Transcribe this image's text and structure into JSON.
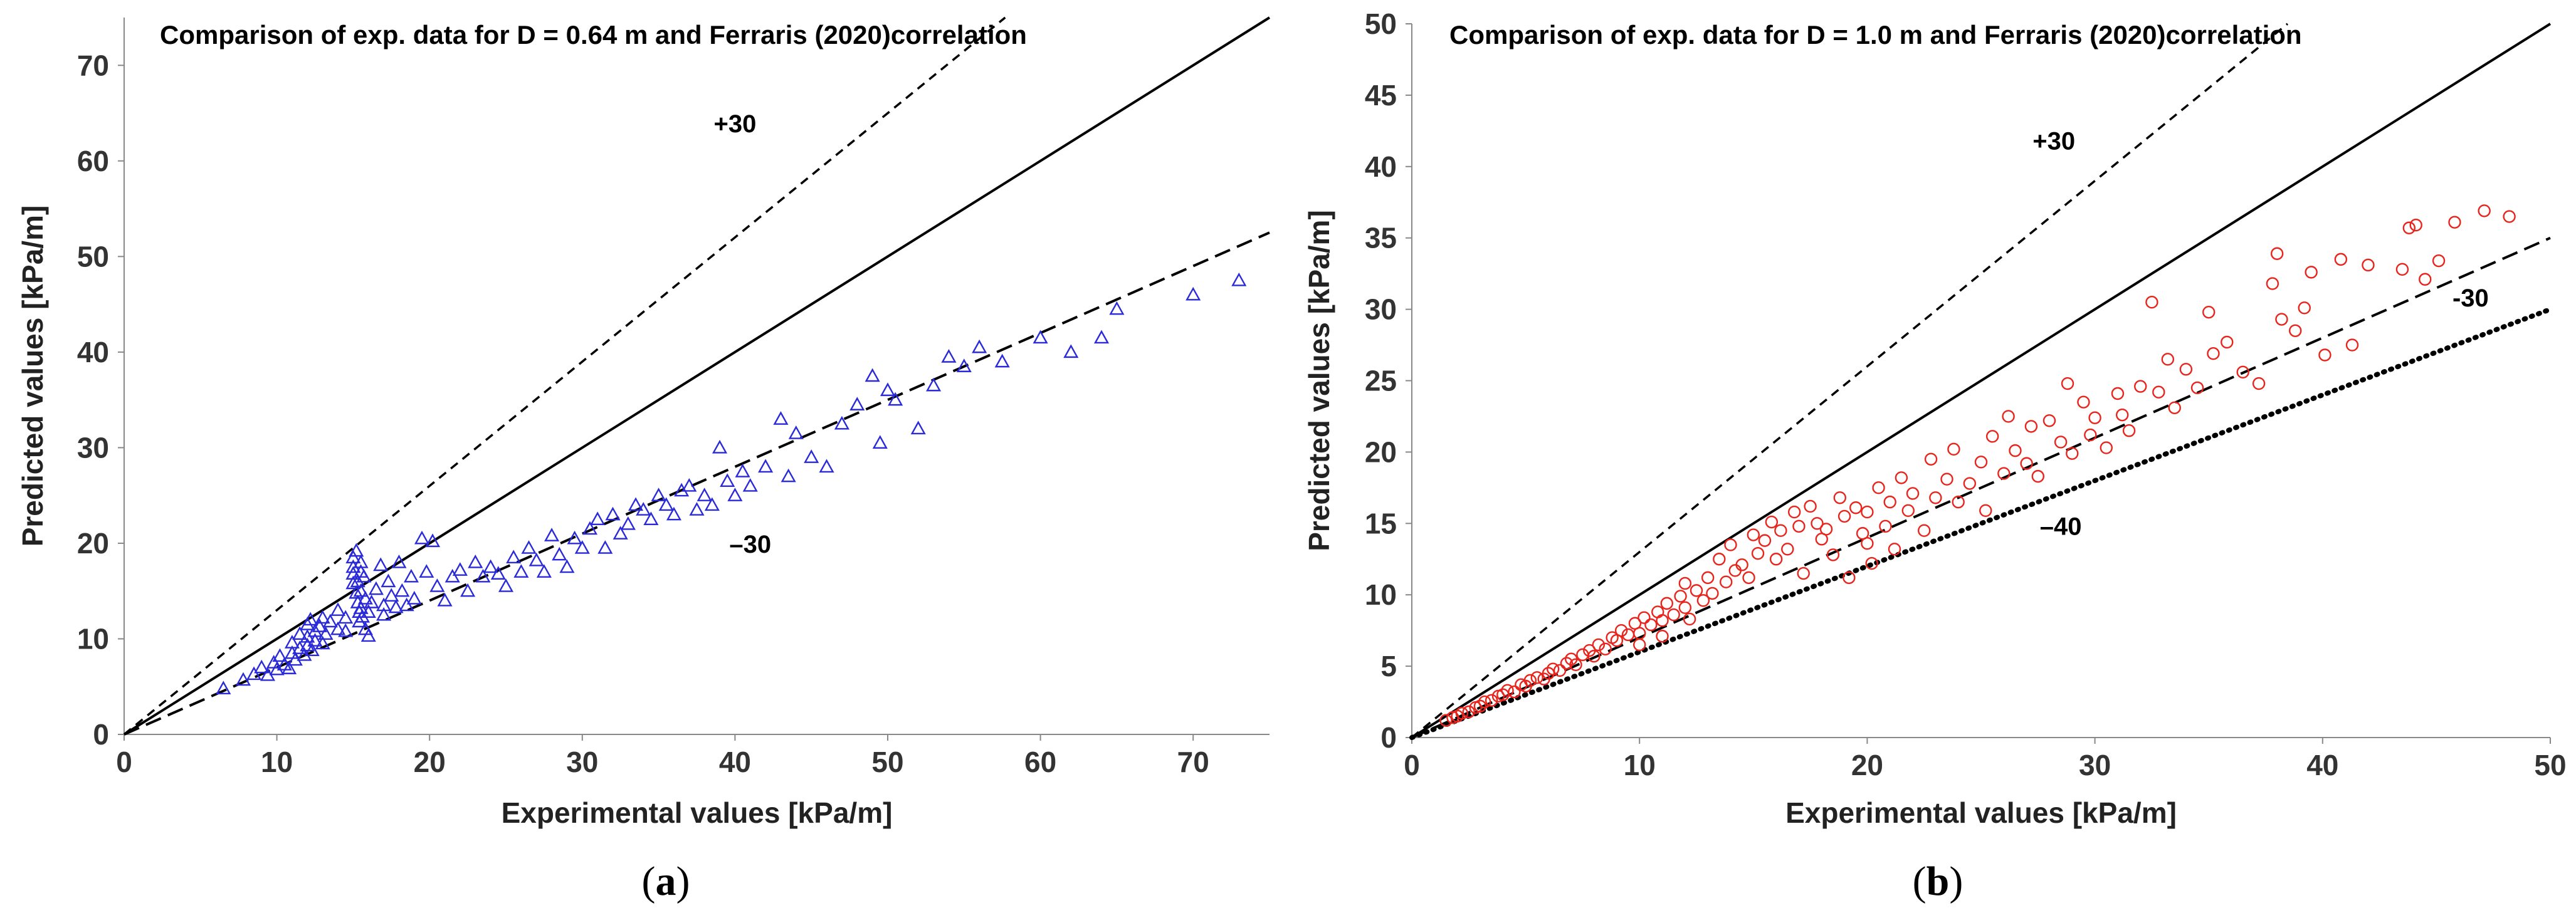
{
  "chart_data": [
    {
      "id": "a",
      "type": "scatter",
      "panel_label": "a",
      "title": "Comparison of exp. data for D = 0.64 m and Ferraris (2020)correlation",
      "xlabel": "Experimental values [kPa/m]",
      "ylabel": "Predicted values [kPa/m]",
      "xlim": [
        0,
        75
      ],
      "ylim": [
        0,
        75
      ],
      "xticks": [
        0,
        10,
        20,
        30,
        40,
        50,
        60,
        70
      ],
      "yticks": [
        0,
        10,
        20,
        30,
        40,
        50,
        60,
        70
      ],
      "marker": "triangle",
      "marker_color": "#2a2ad8",
      "grid": false,
      "reference_lines": [
        {
          "name": "equality",
          "style": "solid",
          "slope": 1.0
        },
        {
          "name": "+30",
          "style": "dashed",
          "slope": 1.3
        },
        {
          "name": "-30",
          "style": "dash",
          "slope": 0.7
        }
      ],
      "annotations": [
        {
          "text": "+30",
          "x": 40,
          "y": 63
        },
        {
          "text": "–30",
          "x": 41,
          "y": 19
        }
      ],
      "points": [
        [
          6.5,
          4.8
        ],
        [
          7.8,
          5.7
        ],
        [
          8.5,
          6.3
        ],
        [
          9,
          7
        ],
        [
          9.4,
          6.2
        ],
        [
          9.8,
          7.5
        ],
        [
          10,
          6.8
        ],
        [
          10.2,
          8.2
        ],
        [
          10.5,
          7.3
        ],
        [
          10.8,
          6.9
        ],
        [
          11,
          8.5
        ],
        [
          11,
          9.6
        ],
        [
          11.2,
          7.8
        ],
        [
          11.5,
          10.5
        ],
        [
          11.5,
          9
        ],
        [
          11.8,
          8.3
        ],
        [
          12,
          11.5
        ],
        [
          12,
          10.2
        ],
        [
          12,
          9.3
        ],
        [
          12.2,
          12
        ],
        [
          12.3,
          8.8
        ],
        [
          12.5,
          10.8
        ],
        [
          12.5,
          9.8
        ],
        [
          12.8,
          11.3
        ],
        [
          13,
          12.2
        ],
        [
          13,
          9.5
        ],
        [
          13.2,
          10.5
        ],
        [
          13.5,
          11.8
        ],
        [
          14,
          13
        ],
        [
          14,
          11
        ],
        [
          14.5,
          12.2
        ],
        [
          14.5,
          10.8
        ],
        [
          15,
          18.5
        ],
        [
          15,
          17.5
        ],
        [
          15,
          16.8
        ],
        [
          15,
          15.8
        ],
        [
          15.2,
          14.8
        ],
        [
          15.2,
          19.2
        ],
        [
          15.3,
          16
        ],
        [
          15.3,
          13.8
        ],
        [
          15.4,
          12.8
        ],
        [
          15.4,
          11.8
        ],
        [
          15.5,
          18
        ],
        [
          15.5,
          17
        ],
        [
          15.5,
          15
        ],
        [
          15.5,
          13.2
        ],
        [
          15.6,
          12.3
        ],
        [
          15.7,
          16.5
        ],
        [
          15.8,
          11
        ],
        [
          15.8,
          14.2
        ],
        [
          16,
          12.8
        ],
        [
          16,
          10.3
        ],
        [
          16.2,
          13.8
        ],
        [
          16.5,
          15.2
        ],
        [
          16.8,
          17.7
        ],
        [
          17,
          13.5
        ],
        [
          17,
          12.5
        ],
        [
          17.3,
          16
        ],
        [
          17.5,
          14.5
        ],
        [
          17.8,
          13.3
        ],
        [
          18,
          18
        ],
        [
          18.2,
          15
        ],
        [
          18.5,
          13.5
        ],
        [
          18.8,
          16.5
        ],
        [
          19,
          14.2
        ],
        [
          19.5,
          20.5
        ],
        [
          19.8,
          17
        ],
        [
          20.2,
          20.2
        ],
        [
          20.5,
          15.5
        ],
        [
          21,
          14
        ],
        [
          21.5,
          16.5
        ],
        [
          22,
          17.2
        ],
        [
          22.5,
          15
        ],
        [
          23,
          18
        ],
        [
          23.5,
          16.5
        ],
        [
          24,
          17.5
        ],
        [
          24.5,
          16.8
        ],
        [
          25,
          15.5
        ],
        [
          25.5,
          18.5
        ],
        [
          26,
          17
        ],
        [
          26.5,
          19.5
        ],
        [
          27,
          18.2
        ],
        [
          27.5,
          17
        ],
        [
          28,
          20.8
        ],
        [
          28.5,
          18.8
        ],
        [
          29,
          17.5
        ],
        [
          29.5,
          20.5
        ],
        [
          30,
          19.5
        ],
        [
          30.5,
          21.5
        ],
        [
          31,
          22.5
        ],
        [
          31.5,
          19.5
        ],
        [
          32,
          23
        ],
        [
          32.5,
          21
        ],
        [
          33,
          22
        ],
        [
          33.5,
          24
        ],
        [
          34,
          23.5
        ],
        [
          34.5,
          22.5
        ],
        [
          35,
          25
        ],
        [
          35.5,
          24
        ],
        [
          36,
          23
        ],
        [
          36.5,
          25.5
        ],
        [
          37,
          26
        ],
        [
          37.5,
          23.5
        ],
        [
          38,
          25
        ],
        [
          38.5,
          24
        ],
        [
          39,
          30
        ],
        [
          39.5,
          26.5
        ],
        [
          40,
          25
        ],
        [
          40.5,
          27.5
        ],
        [
          41,
          26
        ],
        [
          42,
          28
        ],
        [
          43,
          33
        ],
        [
          43.5,
          27
        ],
        [
          44,
          31.5
        ],
        [
          45,
          29
        ],
        [
          46,
          28
        ],
        [
          47,
          32.5
        ],
        [
          48,
          34.5
        ],
        [
          49,
          37.5
        ],
        [
          49.5,
          30.5
        ],
        [
          50,
          36
        ],
        [
          50.5,
          35
        ],
        [
          52,
          32
        ],
        [
          53,
          36.5
        ],
        [
          54,
          39.5
        ],
        [
          55,
          38.5
        ],
        [
          56,
          40.5
        ],
        [
          57.5,
          39
        ],
        [
          60,
          41.5
        ],
        [
          62,
          40
        ],
        [
          64,
          41.5
        ],
        [
          65,
          44.5
        ],
        [
          70,
          46
        ],
        [
          73,
          47.5
        ]
      ]
    },
    {
      "id": "b",
      "type": "scatter",
      "panel_label": "b",
      "title": "Comparison of exp. data for D = 1.0 m and Ferraris (2020)correlation",
      "xlabel": "Experimental values [kPa/m]",
      "ylabel": "Predicted values [kPa/m]",
      "xlim": [
        0,
        50
      ],
      "ylim": [
        0,
        50
      ],
      "xticks": [
        0,
        10,
        20,
        30,
        40,
        50
      ],
      "yticks": [
        0,
        5,
        10,
        15,
        20,
        25,
        30,
        35,
        40,
        45,
        50
      ],
      "marker": "circle",
      "marker_color": "#e8241c",
      "grid": false,
      "reference_lines": [
        {
          "name": "equality",
          "style": "solid",
          "slope": 1.0
        },
        {
          "name": "+30",
          "style": "dashed",
          "slope": 1.3
        },
        {
          "name": "-30",
          "style": "dash",
          "slope": 0.7
        },
        {
          "name": "-40",
          "style": "dotted",
          "slope": 0.6
        }
      ],
      "annotations": [
        {
          "text": "+30",
          "x": 28.2,
          "y": 41.2
        },
        {
          "text": "-30",
          "x": 46.5,
          "y": 30.2
        },
        {
          "text": "–40",
          "x": 28.5,
          "y": 14.2
        }
      ],
      "points": [
        [
          1.5,
          1.2
        ],
        [
          1.8,
          1.4
        ],
        [
          2,
          1.5
        ],
        [
          2.2,
          1.7
        ],
        [
          2.5,
          1.8
        ],
        [
          2.8,
          2.1
        ],
        [
          3,
          2.2
        ],
        [
          3.2,
          2.5
        ],
        [
          3.5,
          2.6
        ],
        [
          3.8,
          2.9
        ],
        [
          4,
          3
        ],
        [
          4.2,
          3.3
        ],
        [
          4.5,
          3.2
        ],
        [
          4.8,
          3.7
        ],
        [
          5,
          3.6
        ],
        [
          5.2,
          4
        ],
        [
          5.5,
          4.2
        ],
        [
          5.8,
          4.1
        ],
        [
          6,
          4.5
        ],
        [
          6.2,
          4.8
        ],
        [
          6.5,
          4.7
        ],
        [
          6.8,
          5.2
        ],
        [
          7,
          5.5
        ],
        [
          7.2,
          5.1
        ],
        [
          7.5,
          5.8
        ],
        [
          7.8,
          6.1
        ],
        [
          8,
          5.7
        ],
        [
          8.2,
          6.5
        ],
        [
          8.5,
          6.2
        ],
        [
          8.8,
          7
        ],
        [
          9,
          6.8
        ],
        [
          9.2,
          7.5
        ],
        [
          9.5,
          7.2
        ],
        [
          9.8,
          8
        ],
        [
          10,
          7.3
        ],
        [
          10,
          6.5
        ],
        [
          10.2,
          8.4
        ],
        [
          10.5,
          7.9
        ],
        [
          10.8,
          8.8
        ],
        [
          11,
          8.2
        ],
        [
          11,
          7.1
        ],
        [
          11.2,
          9.4
        ],
        [
          11.5,
          8.6
        ],
        [
          11.8,
          9.9
        ],
        [
          12,
          9.1
        ],
        [
          12,
          10.8
        ],
        [
          12.2,
          8.3
        ],
        [
          12.5,
          10.3
        ],
        [
          12.8,
          9.6
        ],
        [
          13,
          11.2
        ],
        [
          13.2,
          10.1
        ],
        [
          13.5,
          12.5
        ],
        [
          13.8,
          10.9
        ],
        [
          14,
          13.5
        ],
        [
          14.2,
          11.7
        ],
        [
          14.5,
          12.1
        ],
        [
          14.8,
          11.2
        ],
        [
          15,
          14.2
        ],
        [
          15.2,
          12.9
        ],
        [
          15.5,
          13.8
        ],
        [
          15.8,
          15.1
        ],
        [
          16,
          12.5
        ],
        [
          16.2,
          14.5
        ],
        [
          16.5,
          13.2
        ],
        [
          16.8,
          15.8
        ],
        [
          17,
          14.8
        ],
        [
          17.2,
          11.5
        ],
        [
          17.5,
          16.2
        ],
        [
          17.8,
          15
        ],
        [
          18,
          13.9
        ],
        [
          18.2,
          14.6
        ],
        [
          18.5,
          12.8
        ],
        [
          18.8,
          16.8
        ],
        [
          19,
          15.5
        ],
        [
          19.2,
          11.2
        ],
        [
          19.5,
          16.1
        ],
        [
          19.8,
          14.3
        ],
        [
          20,
          15.8
        ],
        [
          20,
          13.6
        ],
        [
          20.2,
          12.2
        ],
        [
          20.5,
          17.5
        ],
        [
          20.8,
          14.8
        ],
        [
          21,
          16.5
        ],
        [
          21.2,
          13.2
        ],
        [
          21.5,
          18.2
        ],
        [
          21.8,
          15.9
        ],
        [
          22,
          17.1
        ],
        [
          22.5,
          14.5
        ],
        [
          22.8,
          19.5
        ],
        [
          23,
          16.8
        ],
        [
          23.5,
          18.1
        ],
        [
          23.8,
          20.2
        ],
        [
          24,
          16.5
        ],
        [
          24.5,
          17.8
        ],
        [
          25,
          19.3
        ],
        [
          25.2,
          15.9
        ],
        [
          25.5,
          21.1
        ],
        [
          26,
          18.5
        ],
        [
          26.2,
          22.5
        ],
        [
          26.5,
          20.1
        ],
        [
          27,
          19.2
        ],
        [
          27.2,
          21.8
        ],
        [
          27.5,
          18.3
        ],
        [
          28,
          22.2
        ],
        [
          28.5,
          20.7
        ],
        [
          28.8,
          24.8
        ],
        [
          29,
          19.9
        ],
        [
          29.5,
          23.5
        ],
        [
          29.8,
          21.2
        ],
        [
          30,
          22.4
        ],
        [
          30.5,
          20.3
        ],
        [
          31,
          24.1
        ],
        [
          31.2,
          22.6
        ],
        [
          31.5,
          21.5
        ],
        [
          32,
          24.6
        ],
        [
          32.5,
          30.5
        ],
        [
          32.8,
          24.2
        ],
        [
          33.2,
          26.5
        ],
        [
          33.5,
          23.1
        ],
        [
          34,
          25.8
        ],
        [
          34.5,
          24.5
        ],
        [
          35,
          29.8
        ],
        [
          35.2,
          26.9
        ],
        [
          35.8,
          27.7
        ],
        [
          36.5,
          25.6
        ],
        [
          37.2,
          24.8
        ],
        [
          37.8,
          31.8
        ],
        [
          38,
          33.9
        ],
        [
          38.2,
          29.3
        ],
        [
          38.8,
          28.5
        ],
        [
          39.2,
          30.1
        ],
        [
          39.5,
          32.6
        ],
        [
          40.1,
          26.8
        ],
        [
          40.8,
          33.5
        ],
        [
          41.3,
          27.5
        ],
        [
          42,
          33.1
        ],
        [
          43.5,
          32.8
        ],
        [
          43.8,
          35.7
        ],
        [
          44.1,
          35.9
        ],
        [
          44.5,
          32.1
        ],
        [
          45.1,
          33.4
        ],
        [
          45.8,
          36.1
        ],
        [
          47.1,
          36.9
        ],
        [
          48.2,
          36.5
        ]
      ]
    }
  ]
}
